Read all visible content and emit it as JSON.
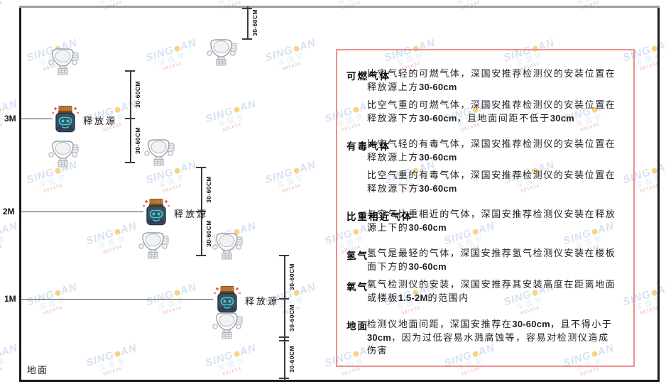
{
  "watermark": {
    "brand_left": "SING",
    "brand_right": "AN",
    "subtitle": "深国安",
    "code": "681434"
  },
  "diagram": {
    "ground_label": "地面",
    "release_source_label": "释放源",
    "dim_label": "30-60CM",
    "levels": [
      {
        "label": "3M"
      },
      {
        "label": "2M"
      },
      {
        "label": "1M"
      }
    ]
  },
  "panel": {
    "border_color": "#f08d8d",
    "sections": [
      {
        "heading": "可燃气体",
        "inline": false,
        "paragraphs": [
          "比空气轻的可燃气体，深国安推荐检测仪的安装位置在释放源上方30-60cm",
          "比空气重的可燃气体，深国安推荐检测仪的安装位置在释放源下方30-60cm，且地面间距不低于30cm"
        ]
      },
      {
        "heading": "有毒气体",
        "inline": false,
        "paragraphs": [
          "比空气轻的有毒气体，深国安推荐检测仪的安装位置在释放源上方30-60cm",
          "比空气重的有毒气体，深国安推荐检测仪的安装位置在释放源下方30-60cm"
        ]
      },
      {
        "heading": "比重相近气体",
        "inline": false,
        "paragraphs": [
          "与空气比重相近的气体，深国安推荐检测仪安装在释放源上下的30-60cm"
        ]
      },
      {
        "heading": "氢气",
        "inline": false,
        "paragraphs": [
          "氢气是最轻的气体，深国安推荐氢气检测仪安装在楼板面下方的30-60cm"
        ]
      },
      {
        "heading": "氧气",
        "inline": true,
        "paragraphs": [
          "氧气检测仪的安装，深国安推荐其安装高度在距离地面或楼板1.5-2M的范围内"
        ]
      },
      {
        "heading": "地面",
        "inline": false,
        "paragraphs": [
          "检测仪地面间距，深国安推荐在30-60cm，且不得小于30cm，因为过低容易水溅腐蚀等，容易对检测仪造成伤害"
        ]
      }
    ]
  }
}
